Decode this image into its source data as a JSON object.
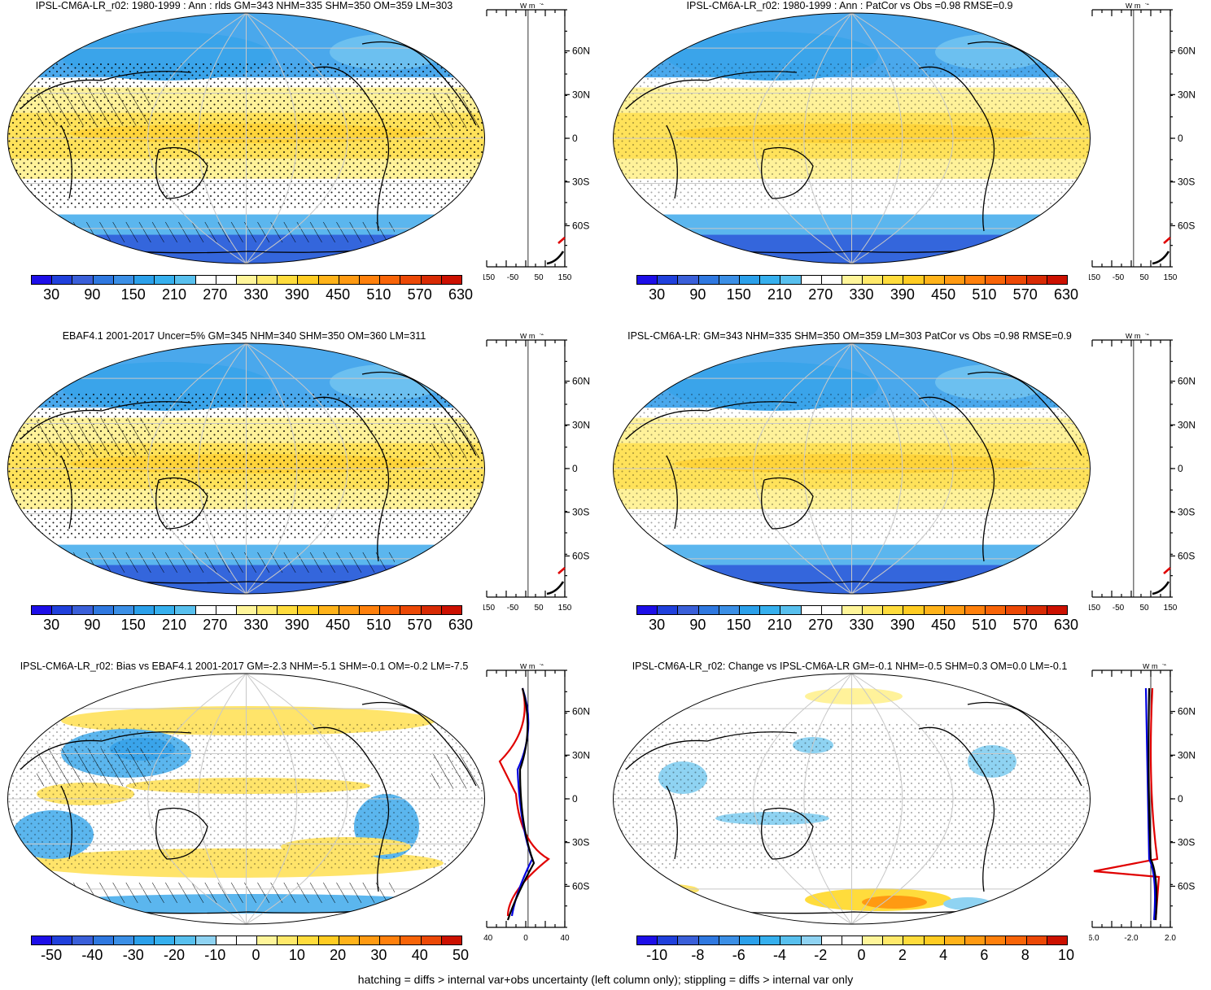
{
  "panels": [
    {
      "id": "p1",
      "title": "IPSL-CM6A-LR_r02: 1980-1999 : Ann : rlds GM=343 NHM=335 SHM=350 OM=359 LM=303",
      "colorbar": "abs",
      "profile_x_ticks": [
        "-150",
        "-50",
        "50",
        "150"
      ]
    },
    {
      "id": "p2",
      "title": "IPSL-CM6A-LR_r02: 1980-1999 : Ann : PatCor vs Obs =0.98 RMSE=0.9",
      "colorbar": "abs",
      "profile_x_ticks": [
        "-150",
        "-50",
        "50",
        "150"
      ]
    },
    {
      "id": "p3",
      "title": "EBAF4.1 2001-2017 Uncer=5% GM=345 NHM=340 SHM=350 OM=360 LM=311",
      "colorbar": "abs",
      "profile_x_ticks": [
        "-150",
        "-50",
        "50",
        "150"
      ]
    },
    {
      "id": "p4",
      "title": "IPSL-CM6A-LR: GM=343 NHM=335 SHM=350 OM=359 LM=303 PatCor vs Obs =0.98 RMSE=0.9",
      "colorbar": "abs",
      "profile_x_ticks": [
        "-150",
        "-50",
        "50",
        "150"
      ]
    },
    {
      "id": "p5",
      "title": "IPSL-CM6A-LR_r02: Bias vs EBAF4.1 2001-2017 GM=-2.3 NHM=-5.1 SHM=-0.1 OM=-0.2 LM=-7.5",
      "colorbar": "bias",
      "profile_x_ticks": [
        "-40",
        "0",
        "40"
      ]
    },
    {
      "id": "p6",
      "title": "IPSL-CM6A-LR_r02: Change vs IPSL-CM6A-LR GM=-0.1 NHM=-0.5 SHM=0.3 OM=0.0 LM=-0.1",
      "colorbar": "change",
      "profile_x_ticks": [
        "-6.0",
        "-2.0",
        "2.0"
      ]
    }
  ],
  "profile_unit": "W m",
  "profile_unit_exp": "-2",
  "lat_labels": [
    "60N",
    "30N",
    "0",
    "30S",
    "60S"
  ],
  "colorbars": {
    "abs": {
      "labels": [
        "30",
        "90",
        "150",
        "210",
        "270",
        "330",
        "390",
        "450",
        "510",
        "570",
        "630"
      ],
      "colors": [
        "#1d0ee8",
        "#2040dc",
        "#3a5fd9",
        "#2f78e0",
        "#3b8fe6",
        "#2ba0ea",
        "#36b0ee",
        "#58c0ee",
        "#ffffff",
        "#ffffff",
        "#fff59a",
        "#ffe96a",
        "#ffdc3c",
        "#ffcc22",
        "#ffb31a",
        "#ff9a12",
        "#ff800c",
        "#f86408",
        "#ec4806",
        "#d82a04",
        "#cc1000"
      ]
    },
    "bias": {
      "labels": [
        "-50",
        "-40",
        "-30",
        "-20",
        "-10",
        "0",
        "10",
        "20",
        "30",
        "40",
        "50"
      ],
      "colors": [
        "#1d0ee8",
        "#2040dc",
        "#3a5fd9",
        "#2f78e0",
        "#3b8fe6",
        "#2ba0ea",
        "#36b0ee",
        "#58c0ee",
        "#8fd3f2",
        "#ffffff",
        "#ffffff",
        "#fff59a",
        "#ffe96a",
        "#ffdc3c",
        "#ffcc22",
        "#ffb31a",
        "#ff9a12",
        "#ff800c",
        "#f86408",
        "#ec4806",
        "#cc1000"
      ]
    },
    "change": {
      "labels": [
        "-10",
        "-8",
        "-6",
        "-4",
        "-2",
        "0",
        "2",
        "4",
        "6",
        "8",
        "10"
      ],
      "colors": [
        "#1d0ee8",
        "#2040dc",
        "#3a5fd9",
        "#2f78e0",
        "#3b8fe6",
        "#2ba0ea",
        "#36b0ee",
        "#58c0ee",
        "#8fd3f2",
        "#ffffff",
        "#ffffff",
        "#fff59a",
        "#ffe96a",
        "#ffdc3c",
        "#ffcc22",
        "#ffb31a",
        "#ff9a12",
        "#ff800c",
        "#f86408",
        "#ec4806",
        "#cc1000"
      ]
    }
  },
  "footer": "hatching = diffs > internal var+obs uncertainty (left column only); stippling = diffs > internal var only"
}
